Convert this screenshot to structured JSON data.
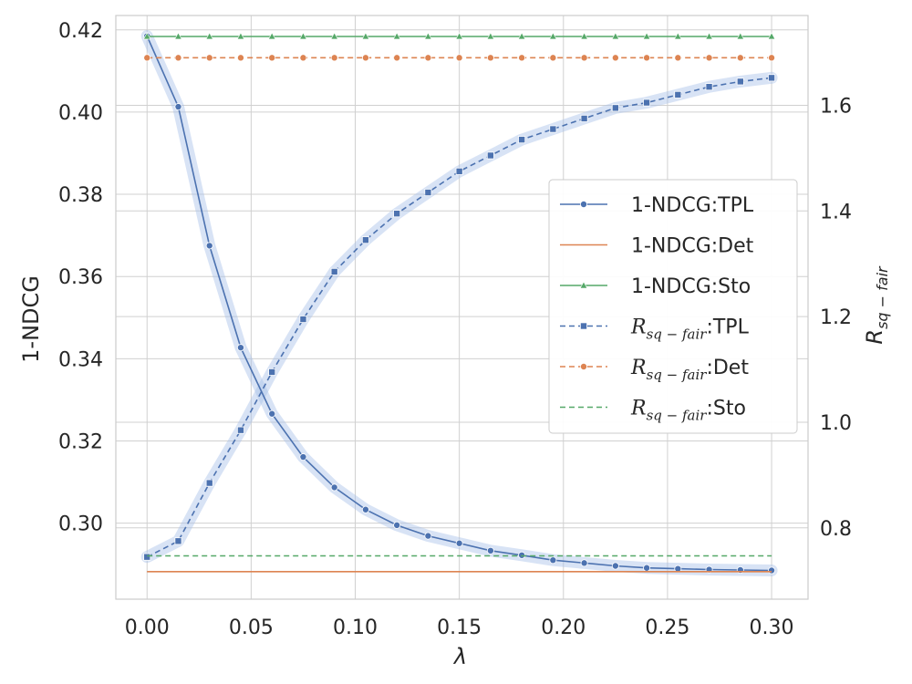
{
  "chart_data": {
    "type": "line",
    "xlabel": "λ",
    "ylabel_left": "1-NDCG",
    "ylabel_right": "R sq - fair",
    "xlim": [
      -0.015,
      0.3175
    ],
    "ylim_left": [
      0.2815,
      0.4235
    ],
    "ylim_right": [
      0.665,
      1.77
    ],
    "x_ticks": [
      0.0,
      0.05,
      0.1,
      0.15,
      0.2,
      0.25,
      0.3
    ],
    "x_tick_labels": [
      "0.00",
      "0.05",
      "0.10",
      "0.15",
      "0.20",
      "0.25",
      "0.30"
    ],
    "y_left_ticks": [
      0.3,
      0.32,
      0.34,
      0.36,
      0.38,
      0.4,
      0.42
    ],
    "y_left_tick_labels": [
      "0.30",
      "0.32",
      "0.34",
      "0.36",
      "0.38",
      "0.40",
      "0.42"
    ],
    "y_right_ticks": [
      0.8,
      1.0,
      1.2,
      1.4,
      1.6
    ],
    "y_right_tick_labels": [
      "0.8",
      "1.0",
      "1.2",
      "1.4",
      "1.6"
    ],
    "grid": true,
    "legend_position": "center-right",
    "x": [
      0.0,
      0.015,
      0.03,
      0.045,
      0.06,
      0.075,
      0.09,
      0.105,
      0.12,
      0.135,
      0.15,
      0.165,
      0.18,
      0.195,
      0.21,
      0.225,
      0.24,
      0.255,
      0.27,
      0.285,
      0.3
    ],
    "series": [
      {
        "name": "1-NDCG:TPL",
        "axis": "left",
        "color": "#4c72b0",
        "style": "solid",
        "marker": "circle",
        "band": true,
        "values": [
          0.4185,
          0.4013,
          0.3675,
          0.3427,
          0.3266,
          0.3161,
          0.3087,
          0.3033,
          0.2995,
          0.2969,
          0.2951,
          0.2933,
          0.2922,
          0.291,
          0.2903,
          0.2896,
          0.2891,
          0.2889,
          0.2887,
          0.2886,
          0.2885
        ]
      },
      {
        "name": "1-NDCG:Det",
        "axis": "left",
        "color": "#dd8452",
        "style": "solid",
        "marker": "none",
        "values": [
          0.2882,
          0.2882,
          0.2882,
          0.2882,
          0.2882,
          0.2882,
          0.2882,
          0.2882,
          0.2882,
          0.2882,
          0.2882,
          0.2882,
          0.2882,
          0.2882,
          0.2882,
          0.2882,
          0.2882,
          0.2882,
          0.2882,
          0.2882,
          0.2882
        ]
      },
      {
        "name": "1-NDCG:Sto",
        "axis": "left",
        "color": "#55a868",
        "style": "solid",
        "marker": "triangle",
        "values": [
          0.4184,
          0.4184,
          0.4184,
          0.4184,
          0.4184,
          0.4184,
          0.4184,
          0.4184,
          0.4184,
          0.4184,
          0.4184,
          0.4184,
          0.4184,
          0.4184,
          0.4184,
          0.4184,
          0.4184,
          0.4184,
          0.4184,
          0.4184,
          0.4184
        ]
      },
      {
        "name": "R_{sq-fair}:TPL",
        "axis": "right",
        "color": "#4c72b0",
        "style": "dashed",
        "marker": "square",
        "band": true,
        "values": [
          0.745,
          0.775,
          0.885,
          0.985,
          1.095,
          1.195,
          1.285,
          1.345,
          1.395,
          1.435,
          1.475,
          1.505,
          1.535,
          1.555,
          1.575,
          1.595,
          1.605,
          1.62,
          1.635,
          1.645,
          1.652
        ]
      },
      {
        "name": "R_{sq-fair}:Det",
        "axis": "right",
        "color": "#dd8452",
        "style": "dashed",
        "marker": "circle",
        "values": [
          1.69,
          1.69,
          1.69,
          1.69,
          1.69,
          1.69,
          1.69,
          1.69,
          1.69,
          1.69,
          1.69,
          1.69,
          1.69,
          1.69,
          1.69,
          1.69,
          1.69,
          1.69,
          1.69,
          1.69,
          1.69
        ]
      },
      {
        "name": "R_{sq-fair}:Sto",
        "axis": "right",
        "color": "#55a868",
        "style": "dashed",
        "marker": "none",
        "values": [
          0.747,
          0.747,
          0.747,
          0.747,
          0.747,
          0.747,
          0.747,
          0.747,
          0.747,
          0.747,
          0.747,
          0.747,
          0.747,
          0.747,
          0.747,
          0.747,
          0.747,
          0.747,
          0.747,
          0.747,
          0.747
        ]
      }
    ],
    "legend_entries": [
      {
        "base": "1-NDCG:TPL",
        "math": false
      },
      {
        "base": "1-NDCG:Det",
        "math": false
      },
      {
        "base": "1-NDCG:Sto",
        "math": false
      },
      {
        "base": "R",
        "sub": "sq − fair",
        "suffix": ":TPL",
        "math": true
      },
      {
        "base": "R",
        "sub": "sq − fair",
        "suffix": ":Det",
        "math": true
      },
      {
        "base": "R",
        "sub": "sq − fair",
        "suffix": ":Sto",
        "math": true
      }
    ]
  }
}
